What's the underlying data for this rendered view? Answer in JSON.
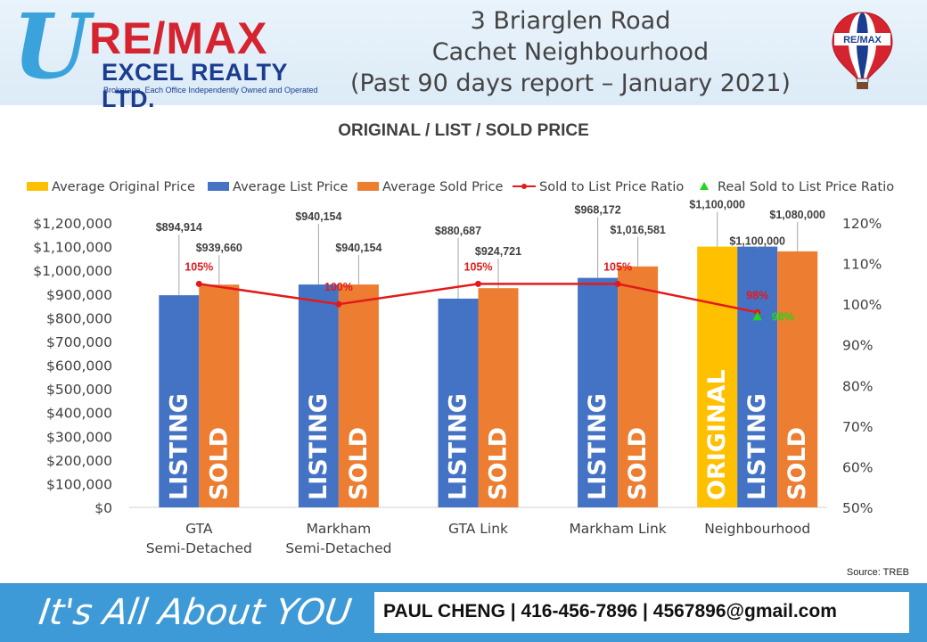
{
  "header": {
    "logo": {
      "letter": "U",
      "brand": "RE/MAX",
      "office": "EXCEL REALTY LTD.",
      "tagline": "Brokerage. Each Office Independently Owned and Operated"
    },
    "title_lines": [
      "3 Briarglen Road",
      "Cachet Neighbourhood",
      "(Past 90 days report – January 2021)"
    ],
    "balloon_text": "RE/MAX"
  },
  "chart_data": {
    "type": "bar",
    "title": "ORIGINAL / LIST / SOLD PRICE",
    "categories": [
      [
        "GTA",
        "Semi-Detached"
      ],
      [
        "Markham",
        "Semi-Detached"
      ],
      [
        "GTA Link"
      ],
      [
        "Markham Link"
      ],
      [
        "Neighbourhood"
      ]
    ],
    "series": [
      {
        "name": "Average Original Price",
        "color": "#ffc000",
        "values": [
          null,
          null,
          null,
          null,
          1100000
        ],
        "bar_text": "ORIGINAL"
      },
      {
        "name": "Average List Price",
        "color": "#4472c4",
        "values": [
          894914,
          940154,
          880687,
          968172,
          1100000
        ],
        "bar_text": "LISTING"
      },
      {
        "name": "Average Sold Price",
        "color": "#ed7d31",
        "values": [
          939660,
          940154,
          924721,
          1016581,
          1080000
        ],
        "bar_text": "SOLD"
      }
    ],
    "value_labels": {
      "original": [
        null,
        null,
        null,
        null,
        "$1,100,000"
      ],
      "list": [
        "$894,914",
        "$940,154",
        "$880,687",
        "$968,172",
        "$1,100,000"
      ],
      "sold": [
        "$939,660",
        "$940,154",
        "$924,721",
        "$1,016,581",
        "$1,080,000"
      ]
    },
    "ratio_series": {
      "name": "Sold to List Price Ratio",
      "color": "#e31a1c",
      "values": [
        105,
        100,
        105,
        105,
        98
      ],
      "labels": [
        "105%",
        "100%",
        "105%",
        "105%",
        "98%"
      ]
    },
    "real_ratio_series": {
      "name": "Real Sold to List Price Ratio",
      "color": "#1dd81d",
      "values": [
        null,
        null,
        null,
        null,
        98
      ],
      "labels": [
        null,
        null,
        null,
        null,
        "98%"
      ]
    },
    "y_left": {
      "min": 0,
      "max": 1200000,
      "step": 100000,
      "ticks": [
        "$0",
        "$100,000",
        "$200,000",
        "$300,000",
        "$400,000",
        "$500,000",
        "$600,000",
        "$700,000",
        "$800,000",
        "$900,000",
        "$1,000,000",
        "$1,100,000",
        "$1,200,000"
      ]
    },
    "y_right": {
      "min": 50,
      "max": 120,
      "step": 10,
      "ticks": [
        "50%",
        "60%",
        "70%",
        "80%",
        "90%",
        "100%",
        "110%",
        "120%"
      ]
    },
    "legend_position": "top",
    "grid": false
  },
  "source": "Source: TREB",
  "footer": {
    "slogan": "It's All About YOU",
    "contact": "PAUL CHENG | 416-456-7896 | 4567896@gmail.com"
  }
}
